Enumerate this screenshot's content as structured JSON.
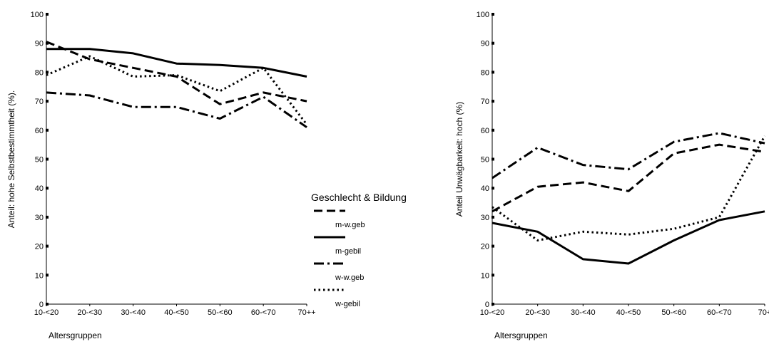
{
  "legend": {
    "title": "Geschlecht & Bildung",
    "entries": [
      {
        "label": "m-w.geb",
        "dash": "dashed"
      },
      {
        "label": "m-gebil",
        "dash": "solid"
      },
      {
        "label": "w-w.geb",
        "dash": "dashdot"
      },
      {
        "label": "w-gebil",
        "dash": "dotted"
      }
    ]
  },
  "chart_data": [
    {
      "type": "line",
      "title": "",
      "xlabel": "Altersgruppen",
      "ylabel": "Anteil: hohe Selbstbestimmtheit (%).",
      "categories": [
        "10-<20",
        "20-<30",
        "30-<40",
        "40-<50",
        "50-<60",
        "60-<70",
        "70++"
      ],
      "ylim": [
        0,
        100
      ],
      "yticks": [
        0,
        10,
        20,
        30,
        40,
        50,
        60,
        70,
        80,
        90,
        100
      ],
      "grid": false,
      "series": [
        {
          "name": "m-w.geb",
          "values": [
            90.5,
            84.5,
            81.5,
            78.5,
            69,
            73,
            70
          ]
        },
        {
          "name": "m-gebil",
          "values": [
            88,
            88,
            86.5,
            83,
            82.5,
            81.5,
            78.5
          ]
        },
        {
          "name": "w-w.geb",
          "values": [
            73,
            72,
            68,
            68,
            64,
            71.5,
            61
          ]
        },
        {
          "name": "w-gebil",
          "values": [
            79,
            85.5,
            78.5,
            79,
            73.5,
            81.5,
            62
          ]
        }
      ]
    },
    {
      "type": "line",
      "title": "",
      "xlabel": "Altersgruppen",
      "ylabel": "Anteil Unwägbarkeit: hoch (%)",
      "categories": [
        "10-<20",
        "20-<30",
        "30-<40",
        "40-<50",
        "50-<60",
        "60-<70",
        "70+"
      ],
      "ylim": [
        0,
        100
      ],
      "yticks": [
        0,
        10,
        20,
        30,
        40,
        50,
        60,
        70,
        80,
        90,
        100
      ],
      "grid": false,
      "series": [
        {
          "name": "m-w.geb",
          "values": [
            32,
            40.5,
            42,
            39,
            52,
            55,
            52.5
          ]
        },
        {
          "name": "m-gebil",
          "values": [
            28,
            25,
            15.5,
            14,
            22,
            29,
            32
          ]
        },
        {
          "name": "w-w.geb",
          "values": [
            43.5,
            54,
            48,
            46.5,
            56,
            59,
            55.5
          ]
        },
        {
          "name": "w-gebil",
          "values": [
            33.5,
            22,
            25,
            24,
            26,
            30,
            58
          ]
        }
      ]
    }
  ]
}
